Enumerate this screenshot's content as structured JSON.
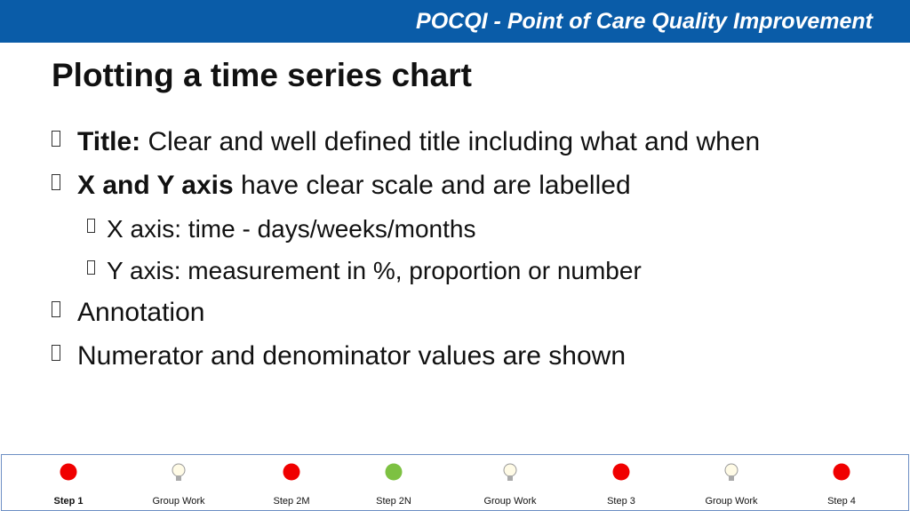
{
  "header": {
    "title": "POCQI - Point of Care Quality Improvement"
  },
  "slide": {
    "title": "Plotting a time series chart",
    "bullets": [
      {
        "bold": "Title:",
        "text": "Clear and well defined title including what and when"
      },
      {
        "bold": "X and Y axis",
        "text": "have clear scale and are labelled",
        "children": [
          {
            "text": "X axis: time - days/weeks/months"
          },
          {
            "text": "Y axis: measurement in %, proportion or number"
          }
        ]
      },
      {
        "text": "Annotation"
      },
      {
        "text": "Numerator and denominator values are shown"
      }
    ]
  },
  "footer": {
    "steps": [
      {
        "label": "Step 1",
        "marker": "red",
        "bold": true
      },
      {
        "label": "Group Work",
        "marker": "bulb"
      },
      {
        "label": "Step 2M",
        "marker": "red"
      },
      {
        "label": "Step 2N",
        "marker": "green"
      },
      {
        "label": "Group Work",
        "marker": "bulb"
      },
      {
        "label": "Step 3",
        "marker": "red"
      },
      {
        "label": "Group Work",
        "marker": "bulb"
      },
      {
        "label": "Step 4",
        "marker": "red"
      }
    ]
  }
}
